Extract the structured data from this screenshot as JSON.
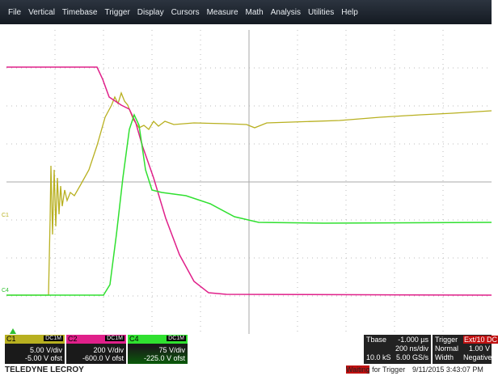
{
  "menu": [
    "File",
    "Vertical",
    "Timebase",
    "Trigger",
    "Display",
    "Cursors",
    "Measure",
    "Math",
    "Analysis",
    "Utilities",
    "Help"
  ],
  "trace_markers": [
    "C1",
    "C4"
  ],
  "channels": [
    {
      "label": "C1",
      "coupling": "DC1M",
      "scale": "5.00 V/div",
      "offset": "-5.00 V ofst"
    },
    {
      "label": "C2",
      "coupling": "DC1M",
      "scale": "200 V/div",
      "offset": "-600.0 V ofst"
    },
    {
      "label": "C4",
      "coupling": "DC1M",
      "scale": "75 V/div",
      "offset": "-225.0 V ofst"
    }
  ],
  "timebase": {
    "label": "Tbase",
    "delay": "-1.000 µs",
    "scale": "200 ns/div",
    "samples": "10.0 kS",
    "rate": "5.00 GS/s"
  },
  "trigger": {
    "label": "Trigger",
    "channel": "Ext/10 DC",
    "mode": "Normal",
    "level": "1.00 V",
    "type": "Width",
    "polarity": "Negative"
  },
  "footer": {
    "brand": "TELEDYNE LECROY",
    "status": "Waiting for Trigger",
    "datetime": "9/11/2015 3:43:07 PM"
  }
}
